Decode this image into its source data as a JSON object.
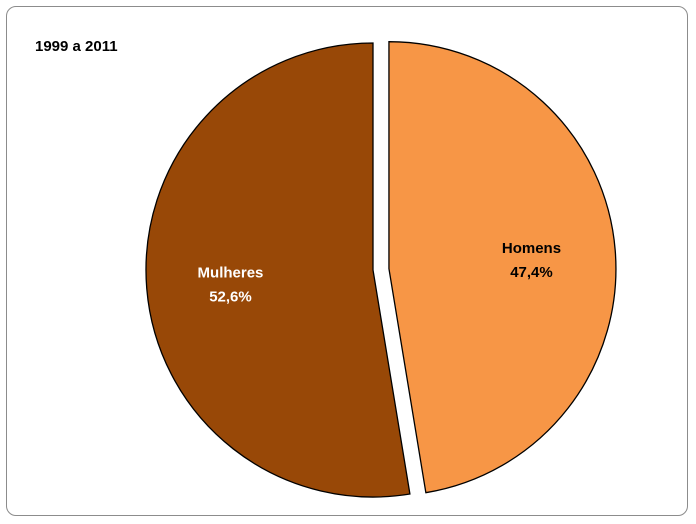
{
  "chart_data": {
    "type": "pie",
    "title": "1999 a 2011",
    "slices": [
      {
        "label": "Homens",
        "value": 47.4,
        "value_label": "47,4%",
        "color": "#f79646",
        "label_color": "#000000"
      },
      {
        "label": "Mulheres",
        "value": 52.6,
        "value_label": "52,6%",
        "color": "#984807",
        "label_color": "#ffffff"
      }
    ],
    "legend": "none",
    "start_angle": "12 o'clock",
    "direction": "clockwise",
    "exploded": "Homens"
  }
}
